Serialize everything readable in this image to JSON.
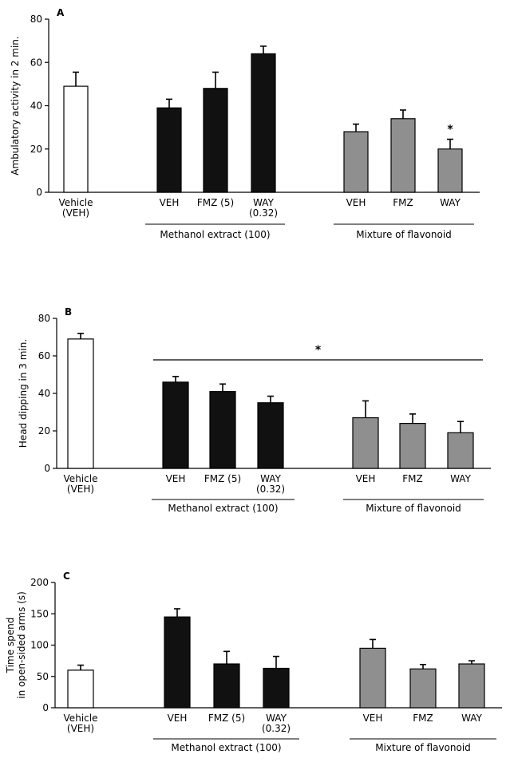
{
  "colors": {
    "vehicle": "#ffffff",
    "methanol": "#111111",
    "flavonoid": "#8f8f8f",
    "axis": "#000000"
  },
  "chart_data": [
    {
      "type": "bar",
      "panel": "A",
      "ylabel": "Ambulatory activity in 2 min.",
      "ylim": [
        0,
        80
      ],
      "yticks": [
        "0",
        "20",
        "40",
        "60",
        "80"
      ],
      "categories": [
        "Vehicle (VEH)",
        "VEH",
        "FMZ (5)",
        "WAY (0.32)",
        "VEH",
        "FMZ",
        "WAY"
      ],
      "category_labels": [
        [
          "Vehicle",
          "(VEH)"
        ],
        [
          "VEH"
        ],
        [
          "FMZ (5)"
        ],
        [
          "WAY",
          "(0.32)"
        ],
        [
          "VEH"
        ],
        [
          "FMZ"
        ],
        [
          "WAY"
        ]
      ],
      "groups": [
        "vehicle",
        "methanol",
        "methanol",
        "methanol",
        "flavonoid",
        "flavonoid",
        "flavonoid"
      ],
      "values": [
        49,
        39,
        48,
        64,
        28,
        34,
        20
      ],
      "errors": [
        6.5,
        4,
        7.5,
        3.5,
        3.5,
        4,
        4.5
      ],
      "group_labels": {
        "methanol": "Methanol extract (100)",
        "flavonoid": "Mixture of flavonoid"
      },
      "annotations": [
        {
          "text": "*",
          "target": "bar",
          "index": 6
        }
      ]
    },
    {
      "type": "bar",
      "panel": "B",
      "ylabel": "Head dipping in 3 min.",
      "ylim": [
        0,
        80
      ],
      "yticks": [
        "0",
        "20",
        "40",
        "60",
        "80"
      ],
      "categories": [
        "Vehicle (VEH)",
        "VEH",
        "FMZ (5)",
        "WAY (0.32)",
        "VEH",
        "FMZ",
        "WAY"
      ],
      "category_labels": [
        [
          "Vehicle",
          "(VEH)"
        ],
        [
          "VEH"
        ],
        [
          "FMZ (5)"
        ],
        [
          "WAY",
          "(0.32)"
        ],
        [
          "VEH"
        ],
        [
          "FMZ"
        ],
        [
          "WAY"
        ]
      ],
      "groups": [
        "vehicle",
        "methanol",
        "methanol",
        "methanol",
        "flavonoid",
        "flavonoid",
        "flavonoid"
      ],
      "values": [
        69,
        46,
        41,
        35,
        27,
        24,
        19
      ],
      "errors": [
        3,
        3,
        4,
        3.5,
        9,
        5,
        6
      ],
      "group_labels": {
        "methanol": "Methanol extract (100)",
        "flavonoid": "Mixture of flavonoid"
      },
      "annotations": [
        {
          "text": "*",
          "target": "line",
          "from": 1,
          "to": 6
        }
      ]
    },
    {
      "type": "bar",
      "panel": "C",
      "ylabel": [
        "Time spend",
        "in open-sided arms (s)"
      ],
      "ylim": [
        0,
        200
      ],
      "yticks": [
        "0",
        "50",
        "100",
        "150",
        "200"
      ],
      "categories": [
        "Vehicle (VEH)",
        "VEH",
        "FMZ (5)",
        "WAY (0.32)",
        "VEH",
        "FMZ",
        "WAY"
      ],
      "category_labels": [
        [
          "Vehicle",
          "(VEH)"
        ],
        [
          "VEH"
        ],
        [
          "FMZ (5)"
        ],
        [
          "WAY",
          "(0.32)"
        ],
        [
          "VEH"
        ],
        [
          "FMZ"
        ],
        [
          "WAY"
        ]
      ],
      "groups": [
        "vehicle",
        "methanol",
        "methanol",
        "methanol",
        "flavonoid",
        "flavonoid",
        "flavonoid"
      ],
      "values": [
        60,
        145,
        70,
        63,
        95,
        62,
        70
      ],
      "errors": [
        8,
        13,
        20,
        19,
        14,
        7,
        5
      ],
      "group_labels": {
        "methanol": "Methanol extract (100)",
        "flavonoid": "Mixture of flavonoid"
      },
      "annotations": []
    }
  ]
}
